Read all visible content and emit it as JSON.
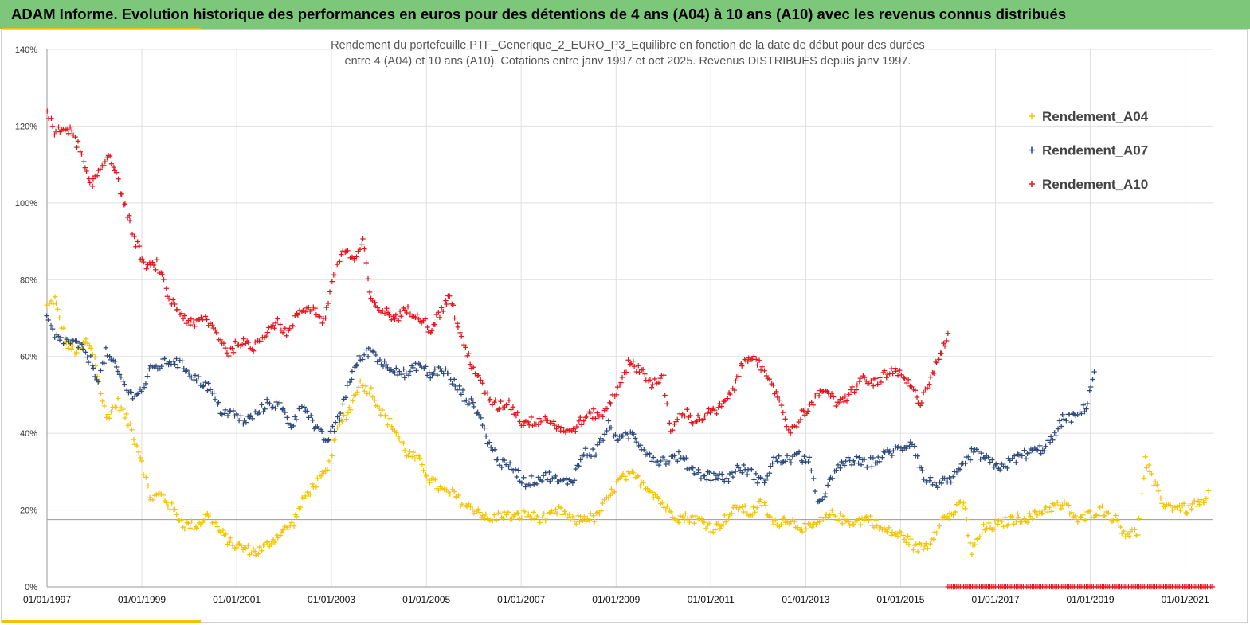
{
  "header": {
    "title": "ADAM Informe. Evolution historique des performances en euros pour des détentions de 4 ans (A04) à 10 ans (A10) avec les revenus connus distribués"
  },
  "chart_data": {
    "type": "scatter",
    "title_line1": "Rendement du portefeuille PTF_Generique_2_EURO_P3_Equilibre  en fonction de la date de début pour des durées",
    "title_line2": "entre 4 (A04) et 10 ans (A10). Cotations entre janv 1997 et oct 2025. Revenus DISTRIBUES depuis janv 1997.",
    "x_range": [
      "01/01/1997",
      "31/07/2021"
    ],
    "x_tick_labels": [
      "01/01/1997",
      "01/01/1999",
      "01/01/2001",
      "01/01/2003",
      "01/01/2005",
      "01/01/2007",
      "01/01/2009",
      "01/01/2011",
      "01/01/2013",
      "01/01/2015",
      "01/01/2017",
      "01/01/2019",
      "01/01/2021"
    ],
    "y_range": [
      0,
      140
    ],
    "y_tick_labels": [
      "0%",
      "20%",
      "40%",
      "60%",
      "80%",
      "100%",
      "120%",
      "140%"
    ],
    "reference_line_y": 17.5,
    "grid": true,
    "legend_position": "top-right",
    "series": [
      {
        "name": "Rendement_A04",
        "color": "#f5c400",
        "points": [
          [
            "01/01/1997",
            73
          ],
          [
            "01/03/1997",
            75
          ],
          [
            "01/06/1997",
            63
          ],
          [
            "01/09/1997",
            61
          ],
          [
            "01/11/1997",
            64
          ],
          [
            "01/01/1998",
            60
          ],
          [
            "01/04/1998",
            44
          ],
          [
            "01/07/1998",
            48
          ],
          [
            "01/10/1998",
            42
          ],
          [
            "01/01/1999",
            33
          ],
          [
            "01/03/1999",
            23
          ],
          [
            "01/06/1999",
            24
          ],
          [
            "01/09/1999",
            20
          ],
          [
            "01/12/1999",
            16
          ],
          [
            "01/03/2000",
            16
          ],
          [
            "01/06/2000",
            19
          ],
          [
            "01/09/2000",
            14
          ],
          [
            "01/12/2000",
            11
          ],
          [
            "01/03/2001",
            10
          ],
          [
            "01/06/2001",
            9
          ],
          [
            "01/09/2001",
            11
          ],
          [
            "01/12/2001",
            14
          ],
          [
            "01/03/2002",
            16
          ],
          [
            "01/06/2002",
            23
          ],
          [
            "01/09/2002",
            27
          ],
          [
            "01/12/2002",
            30
          ],
          [
            "01/03/2003",
            42
          ],
          [
            "01/06/2003",
            47
          ],
          [
            "01/08/2003",
            53
          ],
          [
            "01/11/2003",
            51
          ],
          [
            "01/02/2004",
            45
          ],
          [
            "01/05/2004",
            41
          ],
          [
            "01/08/2004",
            35
          ],
          [
            "01/11/2004",
            33
          ],
          [
            "01/02/2005",
            28
          ],
          [
            "01/05/2005",
            25
          ],
          [
            "01/08/2005",
            24
          ],
          [
            "01/11/2005",
            21
          ],
          [
            "01/02/2006",
            20
          ],
          [
            "01/05/2006",
            17
          ],
          [
            "01/08/2006",
            19
          ],
          [
            "01/11/2006",
            18
          ],
          [
            "01/02/2007",
            19
          ],
          [
            "01/05/2007",
            18
          ],
          [
            "01/08/2007",
            18
          ],
          [
            "01/11/2007",
            20
          ],
          [
            "01/02/2008",
            17
          ],
          [
            "01/05/2008",
            18
          ],
          [
            "01/08/2008",
            18
          ],
          [
            "01/11/2008",
            23
          ],
          [
            "01/02/2009",
            28
          ],
          [
            "01/05/2009",
            29
          ],
          [
            "01/08/2009",
            27
          ],
          [
            "01/11/2009",
            24
          ],
          [
            "01/02/2010",
            20
          ],
          [
            "01/05/2010",
            18
          ],
          [
            "01/08/2010",
            18
          ],
          [
            "01/11/2010",
            17
          ],
          [
            "01/02/2011",
            15
          ],
          [
            "01/05/2011",
            18
          ],
          [
            "01/08/2011",
            21
          ],
          [
            "01/11/2011",
            19
          ],
          [
            "01/02/2012",
            22
          ],
          [
            "01/05/2012",
            16
          ],
          [
            "01/08/2012",
            18
          ],
          [
            "01/11/2012",
            16
          ],
          [
            "01/02/2013",
            15
          ],
          [
            "01/05/2013",
            17
          ],
          [
            "01/08/2013",
            19
          ],
          [
            "01/11/2013",
            17
          ],
          [
            "01/02/2014",
            17
          ],
          [
            "01/05/2014",
            18
          ],
          [
            "01/08/2014",
            15
          ],
          [
            "01/11/2014",
            14
          ],
          [
            "01/02/2015",
            13
          ],
          [
            "01/05/2015",
            10
          ],
          [
            "01/08/2015",
            11
          ],
          [
            "01/11/2015",
            17
          ],
          [
            "01/02/2016",
            19
          ],
          [
            "01/05/2016",
            22
          ],
          [
            "01/07/2016",
            9
          ],
          [
            "01/10/2016",
            15
          ],
          [
            "01/01/2017",
            16
          ],
          [
            "01/04/2017",
            17
          ],
          [
            "01/07/2017",
            18
          ],
          [
            "01/10/2017",
            18
          ],
          [
            "01/01/2018",
            20
          ],
          [
            "01/04/2018",
            21
          ],
          [
            "01/07/2018",
            21
          ],
          [
            "01/10/2018",
            17
          ],
          [
            "01/01/2019",
            19
          ],
          [
            "01/04/2019",
            20
          ],
          [
            "01/07/2019",
            18
          ],
          [
            "01/10/2019",
            14
          ],
          [
            "01/01/2020",
            14
          ],
          [
            "01/03/2020",
            33
          ],
          [
            "01/05/2020",
            27
          ],
          [
            "01/08/2020",
            21
          ],
          [
            "01/11/2020",
            21
          ],
          [
            "01/02/2021",
            20
          ],
          [
            "01/04/2021",
            22
          ],
          [
            "01/06/2021",
            21
          ],
          [
            "01/07/2021",
            25
          ]
        ]
      },
      {
        "name": "Rendement_A07",
        "color": "#2e4a7d",
        "points": [
          [
            "01/01/1997",
            70
          ],
          [
            "01/03/1997",
            65
          ],
          [
            "01/06/1997",
            64
          ],
          [
            "01/09/1997",
            63
          ],
          [
            "01/12/1997",
            59
          ],
          [
            "01/02/1998",
            54
          ],
          [
            "01/04/1998",
            61
          ],
          [
            "01/07/1998",
            56
          ],
          [
            "01/10/1998",
            50
          ],
          [
            "01/01/1999",
            51
          ],
          [
            "01/03/1999",
            56
          ],
          [
            "01/06/1999",
            58
          ],
          [
            "01/09/1999",
            59
          ],
          [
            "01/12/1999",
            57
          ],
          [
            "01/03/2000",
            54
          ],
          [
            "01/06/2000",
            52
          ],
          [
            "01/09/2000",
            46
          ],
          [
            "01/12/2000",
            45
          ],
          [
            "01/03/2001",
            43
          ],
          [
            "01/06/2001",
            45
          ],
          [
            "01/09/2001",
            48
          ],
          [
            "01/12/2001",
            47
          ],
          [
            "01/03/2002",
            42
          ],
          [
            "01/06/2002",
            48
          ],
          [
            "01/09/2002",
            41
          ],
          [
            "01/12/2002",
            38
          ],
          [
            "01/03/2003",
            44
          ],
          [
            "01/06/2003",
            55
          ],
          [
            "01/08/2003",
            59
          ],
          [
            "01/11/2003",
            62
          ],
          [
            "01/02/2004",
            58
          ],
          [
            "01/05/2004",
            57
          ],
          [
            "01/08/2004",
            55
          ],
          [
            "01/11/2004",
            58
          ],
          [
            "01/02/2005",
            55
          ],
          [
            "01/05/2005",
            57
          ],
          [
            "01/08/2005",
            53
          ],
          [
            "01/11/2005",
            49
          ],
          [
            "01/02/2006",
            46
          ],
          [
            "01/05/2006",
            37
          ],
          [
            "01/08/2006",
            32
          ],
          [
            "01/11/2006",
            31
          ],
          [
            "01/02/2007",
            27
          ],
          [
            "01/05/2007",
            28
          ],
          [
            "01/08/2007",
            29
          ],
          [
            "01/11/2007",
            27
          ],
          [
            "01/02/2008",
            28
          ],
          [
            "01/05/2008",
            35
          ],
          [
            "01/08/2008",
            35
          ],
          [
            "01/11/2008",
            42
          ],
          [
            "01/02/2009",
            38
          ],
          [
            "01/05/2009",
            40
          ],
          [
            "01/08/2009",
            36
          ],
          [
            "01/11/2009",
            33
          ],
          [
            "01/02/2010",
            33
          ],
          [
            "01/05/2010",
            34
          ],
          [
            "01/08/2010",
            31
          ],
          [
            "01/11/2010",
            29
          ],
          [
            "01/02/2011",
            29
          ],
          [
            "01/05/2011",
            28
          ],
          [
            "01/08/2011",
            31
          ],
          [
            "01/11/2011",
            30
          ],
          [
            "01/02/2012",
            27
          ],
          [
            "01/05/2012",
            33
          ],
          [
            "01/08/2012",
            33
          ],
          [
            "01/11/2012",
            34
          ],
          [
            "01/02/2013",
            33
          ],
          [
            "01/04/2013",
            21
          ],
          [
            "01/07/2013",
            27
          ],
          [
            "01/10/2013",
            32
          ],
          [
            "01/01/2014",
            33
          ],
          [
            "01/04/2014",
            32
          ],
          [
            "01/07/2014",
            33
          ],
          [
            "01/10/2014",
            35
          ],
          [
            "01/01/2015",
            36
          ],
          [
            "01/04/2015",
            38
          ],
          [
            "01/07/2015",
            28
          ],
          [
            "01/10/2015",
            27
          ],
          [
            "01/01/2016",
            27
          ],
          [
            "01/04/2016",
            30
          ],
          [
            "01/07/2016",
            35
          ],
          [
            "01/10/2016",
            34
          ],
          [
            "01/01/2017",
            31
          ],
          [
            "01/04/2017",
            32
          ],
          [
            "01/07/2017",
            34
          ],
          [
            "01/10/2017",
            35
          ],
          [
            "01/01/2018",
            36
          ],
          [
            "01/04/2018",
            39
          ],
          [
            "01/06/2018",
            44
          ],
          [
            "01/09/2018",
            44
          ],
          [
            "01/12/2018",
            47
          ],
          [
            "01/02/2019",
            56
          ]
        ]
      },
      {
        "name": "Rendement_A10",
        "color": "#e8141b",
        "points": [
          [
            "01/01/1997",
            124
          ],
          [
            "01/03/1997",
            118
          ],
          [
            "01/06/1997",
            120
          ],
          [
            "01/09/1997",
            115
          ],
          [
            "01/12/1997",
            104
          ],
          [
            "01/03/1998",
            110
          ],
          [
            "01/05/1998",
            113
          ],
          [
            "01/08/1998",
            102
          ],
          [
            "01/11/1998",
            91
          ],
          [
            "01/02/1999",
            83
          ],
          [
            "01/05/1999",
            84
          ],
          [
            "01/08/1999",
            75
          ],
          [
            "01/11/1999",
            71
          ],
          [
            "01/02/2000",
            68
          ],
          [
            "01/05/2000",
            70
          ],
          [
            "01/08/2000",
            66
          ],
          [
            "01/11/2000",
            61
          ],
          [
            "01/02/2001",
            64
          ],
          [
            "01/05/2001",
            62
          ],
          [
            "01/08/2001",
            66
          ],
          [
            "01/11/2001",
            69
          ],
          [
            "01/02/2002",
            66
          ],
          [
            "01/05/2002",
            72
          ],
          [
            "01/08/2002",
            73
          ],
          [
            "01/11/2002",
            69
          ],
          [
            "01/02/2003",
            82
          ],
          [
            "01/04/2003",
            88
          ],
          [
            "01/07/2003",
            85
          ],
          [
            "01/09/2003",
            90
          ],
          [
            "01/11/2003",
            74
          ],
          [
            "01/02/2004",
            72
          ],
          [
            "01/05/2004",
            70
          ],
          [
            "01/08/2004",
            72
          ],
          [
            "01/11/2004",
            71
          ],
          [
            "01/02/2005",
            67
          ],
          [
            "01/05/2005",
            72
          ],
          [
            "01/07/2005",
            76
          ],
          [
            "01/10/2005",
            64
          ],
          [
            "01/01/2006",
            57
          ],
          [
            "01/04/2006",
            50
          ],
          [
            "01/07/2006",
            47
          ],
          [
            "01/10/2006",
            48
          ],
          [
            "01/01/2007",
            43
          ],
          [
            "01/04/2007",
            43
          ],
          [
            "01/07/2007",
            44
          ],
          [
            "01/10/2007",
            42
          ],
          [
            "01/01/2008",
            40
          ],
          [
            "01/04/2008",
            43
          ],
          [
            "01/07/2008",
            45
          ],
          [
            "01/10/2008",
            45
          ],
          [
            "01/01/2009",
            51
          ],
          [
            "01/04/2009",
            58
          ],
          [
            "01/07/2009",
            57
          ],
          [
            "01/10/2009",
            53
          ],
          [
            "01/01/2010",
            54
          ],
          [
            "01/03/2010",
            40
          ],
          [
            "01/06/2010",
            46
          ],
          [
            "01/09/2010",
            43
          ],
          [
            "01/12/2010",
            45
          ],
          [
            "01/03/2011",
            46
          ],
          [
            "01/06/2011",
            50
          ],
          [
            "01/09/2011",
            58
          ],
          [
            "01/12/2011",
            61
          ],
          [
            "01/03/2012",
            54
          ],
          [
            "01/06/2012",
            50
          ],
          [
            "01/09/2012",
            40
          ],
          [
            "01/12/2012",
            45
          ],
          [
            "01/03/2013",
            48
          ],
          [
            "01/06/2013",
            52
          ],
          [
            "01/09/2013",
            47
          ],
          [
            "01/12/2013",
            50
          ],
          [
            "01/03/2014",
            54
          ],
          [
            "01/06/2014",
            53
          ],
          [
            "01/09/2014",
            55
          ],
          [
            "01/12/2014",
            56
          ],
          [
            "01/03/2015",
            53
          ],
          [
            "01/06/2015",
            48
          ],
          [
            "01/09/2015",
            56
          ],
          [
            "01/11/2015",
            60
          ],
          [
            "01/01/2016",
            66
          ]
        ],
        "zero_band": [
          "01/01/2016",
          "31/07/2021"
        ]
      }
    ]
  }
}
